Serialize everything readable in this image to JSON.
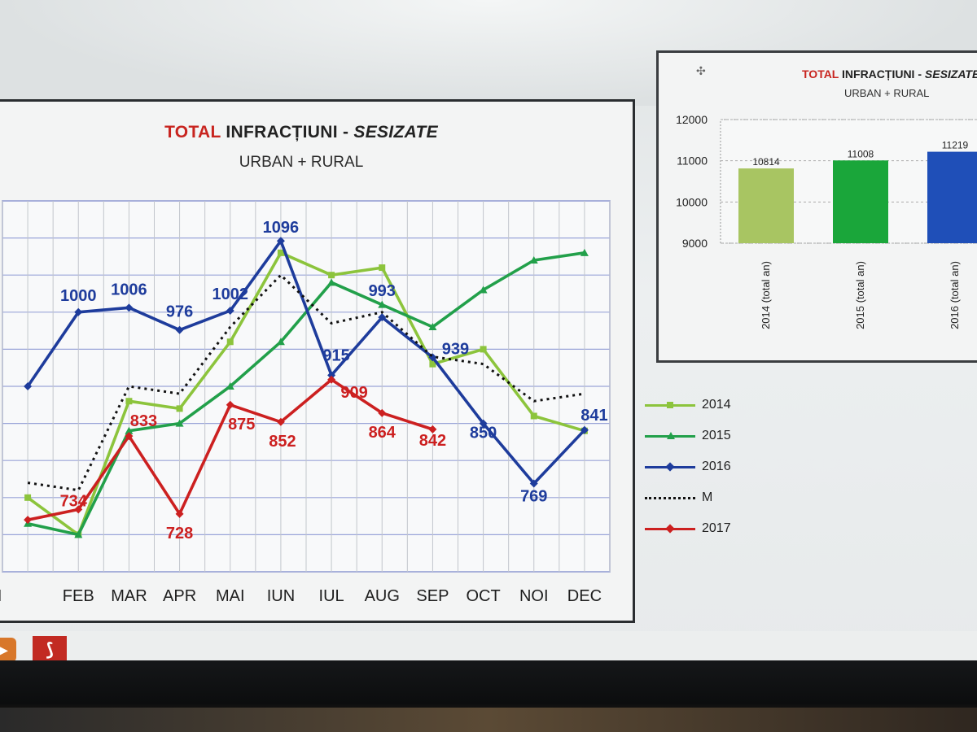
{
  "main_chart": {
    "title_red": "TOTAL",
    "title_main": "INFRACȚIUNI - ",
    "title_italic": "SESIZATE",
    "subtitle": "URBAN + RURAL"
  },
  "inset_chart": {
    "title_red": "TOTAL",
    "title_main": " INFRACȚIUNI - ",
    "title_italic": "SESIZATE",
    "subtitle": "URBAN + RURAL"
  },
  "legend": [
    {
      "label": "2014",
      "color": "#8cc43c",
      "marker": "square",
      "dotted": false
    },
    {
      "label": "2015",
      "color": "#22a04a",
      "marker": "triangle",
      "dotted": false
    },
    {
      "label": "2016",
      "color": "#1e3c9c",
      "marker": "diamond",
      "dotted": false
    },
    {
      "label": "M",
      "color": "#111111",
      "marker": "none",
      "dotted": true
    },
    {
      "label": "2017",
      "color": "#cc2020",
      "marker": "diamond",
      "dotted": false
    }
  ],
  "chart_data": [
    {
      "type": "line",
      "categories": [
        "IAN",
        "FEB",
        "MAR",
        "APR",
        "MAI",
        "IUN",
        "IUL",
        "AUG",
        "SEP",
        "OCT",
        "NOI",
        "DEC"
      ],
      "visible_category_labels": [
        "N",
        "FEB",
        "MAR",
        "APR",
        "MAI",
        "IUN",
        "IUL",
        "AUG",
        "SEP",
        "OCT",
        "NOI",
        "DEC"
      ],
      "ylim": [
        650,
        1150
      ],
      "grid": true,
      "legend_position": "right",
      "series": [
        {
          "name": "2014",
          "color": "#8cc43c",
          "values": [
            750,
            700,
            880,
            870,
            960,
            1080,
            1050,
            1060,
            930,
            950,
            860,
            840
          ]
        },
        {
          "name": "2015",
          "color": "#22a04a",
          "values": [
            715,
            700,
            840,
            850,
            900,
            960,
            1040,
            1010,
            980,
            1030,
            1070,
            1080
          ]
        },
        {
          "name": "2016",
          "color": "#1e3c9c",
          "values": [
            900,
            1000,
            1006,
            976,
            1002,
            1096,
            915,
            993,
            939,
            850,
            769,
            841
          ]
        },
        {
          "name": "M",
          "color": "#111111",
          "dotted": true,
          "values": [
            770,
            760,
            900,
            890,
            980,
            1050,
            985,
            1000,
            940,
            930,
            880,
            890
          ]
        },
        {
          "name": "2017",
          "color": "#cc2020",
          "values": [
            720,
            734,
            833,
            728,
            875,
            852,
            909,
            864,
            842,
            null,
            null,
            null
          ]
        }
      ],
      "data_labels": [
        {
          "series": "2016",
          "category": "FEB",
          "text": "1000"
        },
        {
          "series": "2016",
          "category": "MAR",
          "text": "1006"
        },
        {
          "series": "2016",
          "category": "APR",
          "text": "976"
        },
        {
          "series": "2016",
          "category": "MAI",
          "text": "1002"
        },
        {
          "series": "2016",
          "category": "IUN",
          "text": "1096"
        },
        {
          "series": "2016",
          "category": "IUL",
          "text": "915"
        },
        {
          "series": "2016",
          "category": "AUG",
          "text": "993"
        },
        {
          "series": "2016",
          "category": "SEP",
          "text": "939"
        },
        {
          "series": "2016",
          "category": "OCT",
          "text": "850"
        },
        {
          "series": "2016",
          "category": "NOI",
          "text": "769"
        },
        {
          "series": "2016",
          "category": "DEC",
          "text": "841"
        },
        {
          "series": "2017",
          "category": "FEB",
          "text": "734"
        },
        {
          "series": "2017",
          "category": "MAR",
          "text": "833"
        },
        {
          "series": "2017",
          "category": "APR",
          "text": "728"
        },
        {
          "series": "2017",
          "category": "MAI",
          "text": "875"
        },
        {
          "series": "2017",
          "category": "IUN",
          "text": "852"
        },
        {
          "series": "2017",
          "category": "IUL",
          "text": "909"
        },
        {
          "series": "2017",
          "category": "AUG",
          "text": "864"
        },
        {
          "series": "2017",
          "category": "SEP",
          "text": "842"
        }
      ]
    },
    {
      "type": "bar",
      "categories": [
        "2014 (total an)",
        "2015 (total an)",
        "2016 (total an)"
      ],
      "values": [
        10814,
        11008,
        11219
      ],
      "colors": [
        "#a8c562",
        "#1aa63a",
        "#1f4fb8"
      ],
      "ylim": [
        9000,
        12000
      ],
      "yticks": [
        9000,
        10000,
        11000,
        12000
      ],
      "grid": true
    }
  ]
}
